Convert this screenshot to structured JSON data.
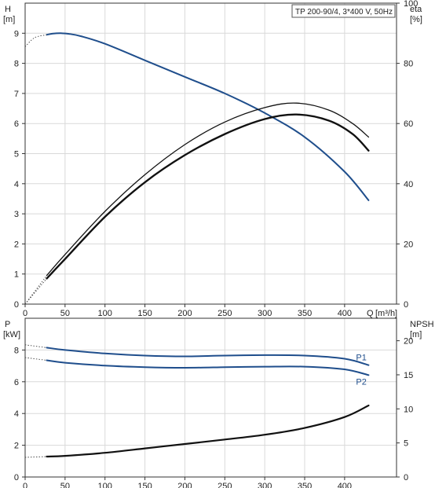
{
  "chart_data": [
    {
      "type": "line",
      "panel": "head-efficiency",
      "title": "TP 200-90/4, 3*400 V, 50Hz",
      "xlabel": "Q [m³/h]",
      "x_label_short": "Q",
      "x_unit": "[m³/h]",
      "x_ticks": [
        "0",
        "50",
        "100",
        "150",
        "200",
        "250",
        "300",
        "350",
        "400"
      ],
      "xlim": [
        0,
        465
      ],
      "y_left": {
        "label": "H",
        "unit": "[m]",
        "ylim": [
          0,
          10
        ],
        "ticks": [
          "0",
          "1",
          "2",
          "3",
          "4",
          "5",
          "6",
          "7",
          "8",
          "9"
        ]
      },
      "y_right": {
        "label": "eta",
        "unit": "[%]",
        "ylim": [
          0,
          100
        ],
        "ticks": [
          "0",
          "20",
          "40",
          "60",
          "80",
          "100"
        ]
      },
      "grid": true,
      "series": [
        {
          "name": "",
          "axis": "left",
          "color": "#1f4e8c",
          "x": [
            27,
            35,
            45,
            55,
            70,
            100,
            150,
            200,
            250,
            300,
            350,
            400,
            430
          ],
          "y": [
            8.95,
            8.99,
            9.0,
            8.98,
            8.9,
            8.65,
            8.1,
            7.55,
            7.0,
            6.35,
            5.55,
            4.4,
            3.45
          ]
        },
        {
          "name": "",
          "axis": "right",
          "color": "#111111",
          "x": [
            27,
            50,
            100,
            150,
            200,
            250,
            300,
            340,
            380,
            410,
            430
          ],
          "y": [
            9.5,
            16.5,
            30.8,
            43.0,
            53.0,
            60.5,
            65.3,
            66.8,
            64.5,
            60.0,
            55.5
          ]
        },
        {
          "name": "",
          "axis": "right",
          "color": "#111111",
          "x": [
            27,
            50,
            100,
            150,
            200,
            250,
            300,
            340,
            380,
            410,
            430
          ],
          "y": [
            8.5,
            15.0,
            29.0,
            40.5,
            49.5,
            56.5,
            61.5,
            63.0,
            61.0,
            56.5,
            51.0
          ]
        }
      ]
    },
    {
      "type": "line",
      "panel": "power-npsh",
      "x_ticks": [
        "0",
        "50",
        "100",
        "150",
        "200",
        "250",
        "300",
        "350",
        "400"
      ],
      "xlim": [
        0,
        465
      ],
      "y_left": {
        "label": "P",
        "unit": "[kW]",
        "ylim": [
          0,
          10
        ],
        "ticks": [
          "0",
          "2",
          "4",
          "6",
          "8"
        ]
      },
      "y_right": {
        "label": "NPSH",
        "unit": "[m]",
        "ylim": [
          0,
          23.3
        ],
        "ticks": [
          "0",
          "5",
          "10",
          "15",
          "20"
        ]
      },
      "grid": true,
      "series": [
        {
          "name": "P1",
          "axis": "left",
          "color": "#1f4e8c",
          "x": [
            27,
            50,
            100,
            150,
            200,
            250,
            300,
            350,
            400,
            430
          ],
          "y": [
            8.15,
            8.0,
            7.78,
            7.65,
            7.6,
            7.65,
            7.68,
            7.65,
            7.45,
            7.05
          ]
        },
        {
          "name": "P2",
          "axis": "left",
          "color": "#1f4e8c",
          "x": [
            27,
            50,
            100,
            150,
            200,
            250,
            300,
            350,
            400,
            430
          ],
          "y": [
            7.35,
            7.2,
            7.02,
            6.92,
            6.88,
            6.92,
            6.95,
            6.95,
            6.78,
            6.42
          ]
        },
        {
          "name": "",
          "axis": "right",
          "color": "#111111",
          "x": [
            27,
            50,
            100,
            150,
            200,
            250,
            300,
            350,
            400,
            430
          ],
          "y": [
            3.0,
            3.1,
            3.55,
            4.2,
            4.85,
            5.5,
            6.2,
            7.2,
            8.8,
            10.5
          ]
        }
      ]
    }
  ]
}
